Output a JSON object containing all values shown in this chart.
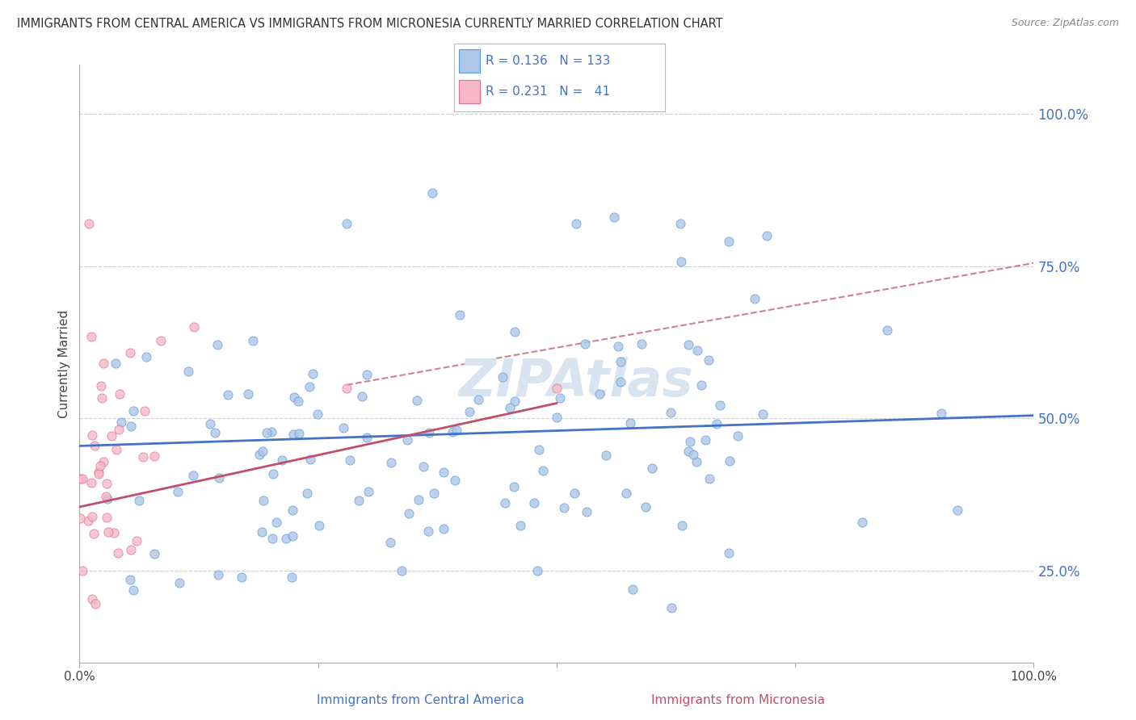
{
  "title": "IMMIGRANTS FROM CENTRAL AMERICA VS IMMIGRANTS FROM MICRONESIA CURRENTLY MARRIED CORRELATION CHART",
  "source": "Source: ZipAtlas.com",
  "ylabel": "Currently Married",
  "R_blue": 0.136,
  "N_blue": 133,
  "R_pink": 0.231,
  "N_pink": 41,
  "blue_fill": "#aec6e8",
  "blue_edge": "#5b9bd5",
  "pink_fill": "#f4b8c8",
  "pink_edge": "#e07090",
  "blue_line_color": "#4472c4",
  "pink_line_color": "#c0506a",
  "dashed_line_color": "#d08090",
  "grid_color": "#d0d0d0",
  "bg_color": "#ffffff",
  "watermark_color": "#d8e4f0",
  "legend_text_color": "#4472c4",
  "label_color": "#4472c4",
  "ytick_values": [
    0.25,
    0.5,
    0.75,
    1.0
  ],
  "ytick_labels": [
    "25.0%",
    "50.0%",
    "75.0%",
    "100.0%"
  ],
  "blue_trend_x": [
    0.0,
    1.0
  ],
  "blue_trend_y": [
    0.455,
    0.505
  ],
  "pink_trend_x": [
    0.0,
    0.5
  ],
  "pink_trend_y": [
    0.355,
    0.525
  ],
  "dashed_trend_x": [
    0.28,
    1.0
  ],
  "dashed_trend_y": [
    0.555,
    0.755
  ],
  "xlim": [
    0.0,
    1.0
  ],
  "ylim": [
    0.1,
    1.08
  ]
}
